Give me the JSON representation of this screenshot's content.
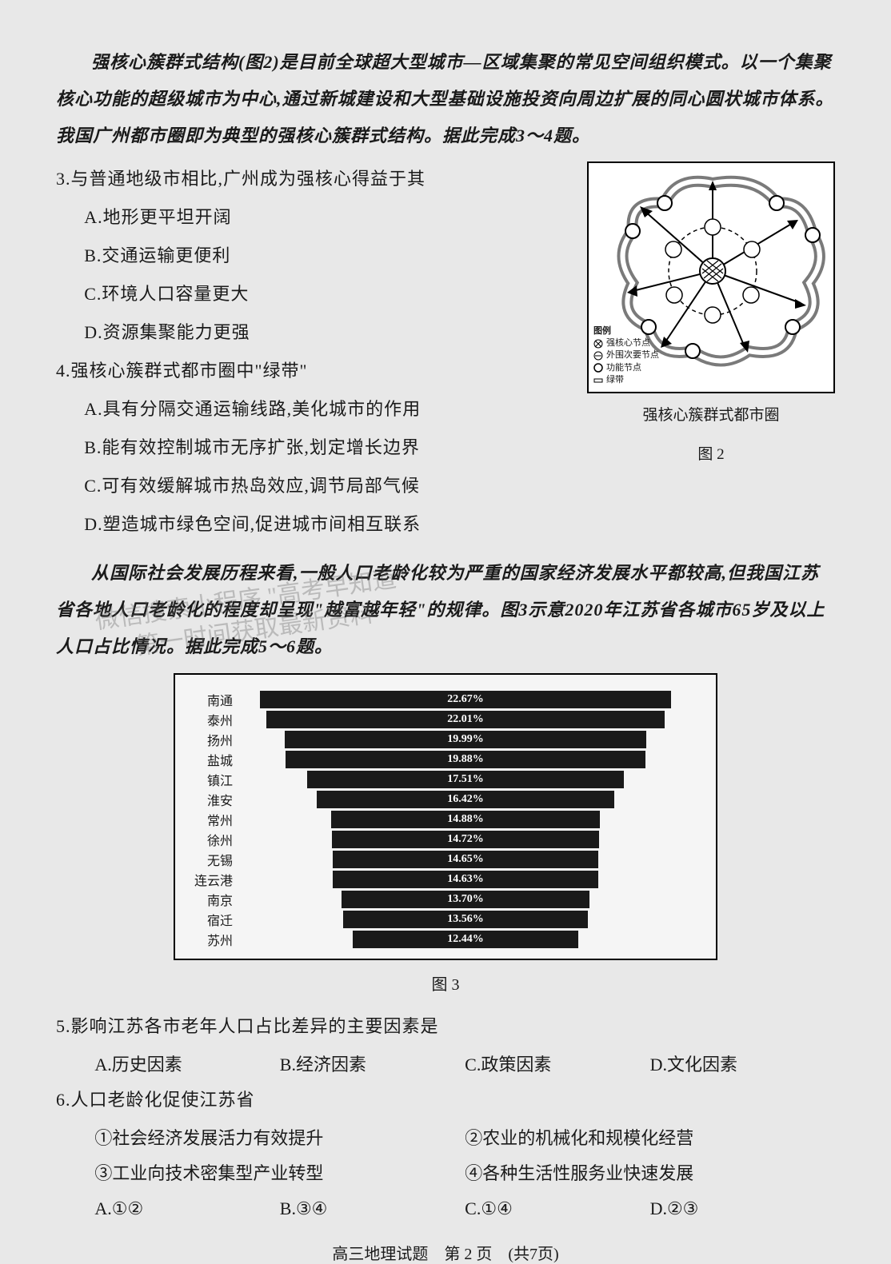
{
  "intro1": "强核心簇群式结构(图2)是目前全球超大型城市—区域集聚的常见空间组织模式。以一个集聚核心功能的超级城市为中心,通过新城建设和大型基础设施投资向周边扩展的同心圆状城市体系。我国广州都市圈即为典型的强核心簇群式结构。据此完成3～4题。",
  "q3": {
    "stem": "3.与普通地级市相比,广州成为强核心得益于其",
    "A": "A.地形更平坦开阔",
    "B": "B.交通运输更便利",
    "C": "C.环境人口容量更大",
    "D": "D.资源集聚能力更强"
  },
  "q4": {
    "stem": "4.强核心簇群式都市圈中\"绿带\"",
    "A": "A.具有分隔交通运输线路,美化城市的作用",
    "B": "B.能有效控制城市无序扩张,划定增长边界",
    "C": "C.可有效缓解城市热岛效应,调节局部气候",
    "D": "D.塑造城市绿色空间,促进城市间相互联系"
  },
  "diagram": {
    "legend_title": "图例",
    "legend_items": [
      "强核心节点",
      "外围次要节点",
      "功能节点",
      "绿带"
    ],
    "caption1": "强核心簇群式都市圈",
    "caption2": "图 2"
  },
  "intro2": "从国际社会发展历程来看,一般人口老龄化较为严重的国家经济发展水平都较高,但我国江苏省各地人口老龄化的程度却呈现\"越富越年轻\"的规律。图3示意2020年江苏省各城市65岁及以上人口占比情况。据此完成5～6题。",
  "watermark_line1": "微信搜索小程序 \"高考早知道\"",
  "watermark_line2": "第一时间获取最新资料",
  "chart": {
    "type": "bar",
    "max_value": 25,
    "bar_color": "#1a1a1a",
    "value_text_color": "#ffffff",
    "background_color": "#f5f5f5",
    "border_color": "#000000",
    "label_fontsize": 16,
    "value_fontsize": 14,
    "rows": [
      {
        "city": "南通",
        "pct": 22.67,
        "label": "22.67%"
      },
      {
        "city": "泰州",
        "pct": 22.01,
        "label": "22.01%"
      },
      {
        "city": "扬州",
        "pct": 19.99,
        "label": "19.99%"
      },
      {
        "city": "盐城",
        "pct": 19.88,
        "label": "19.88%"
      },
      {
        "city": "镇江",
        "pct": 17.51,
        "label": "17.51%"
      },
      {
        "city": "淮安",
        "pct": 16.42,
        "label": "16.42%"
      },
      {
        "city": "常州",
        "pct": 14.88,
        "label": "14.88%"
      },
      {
        "city": "徐州",
        "pct": 14.72,
        "label": "14.72%"
      },
      {
        "city": "无锡",
        "pct": 14.65,
        "label": "14.65%"
      },
      {
        "city": "连云港",
        "pct": 14.63,
        "label": "14.63%"
      },
      {
        "city": "南京",
        "pct": 13.7,
        "label": "13.70%"
      },
      {
        "city": "宿迁",
        "pct": 13.56,
        "label": "13.56%"
      },
      {
        "city": "苏州",
        "pct": 12.44,
        "label": "12.44%"
      }
    ],
    "caption": "图 3"
  },
  "q5": {
    "stem": "5.影响江苏各市老年人口占比差异的主要因素是",
    "A": "A.历史因素",
    "B": "B.经济因素",
    "C": "C.政策因素",
    "D": "D.文化因素"
  },
  "q6": {
    "stem": "6.人口老龄化促使江苏省",
    "s1": "①社会经济发展活力有效提升",
    "s2": "②农业的机械化和规模化经营",
    "s3": "③工业向技术密集型产业转型",
    "s4": "④各种生活性服务业快速发展",
    "A": "A.①②",
    "B": "B.③④",
    "C": "C.①④",
    "D": "D.②③"
  },
  "footer": "高三地理试题　第 2 页　(共7页)"
}
